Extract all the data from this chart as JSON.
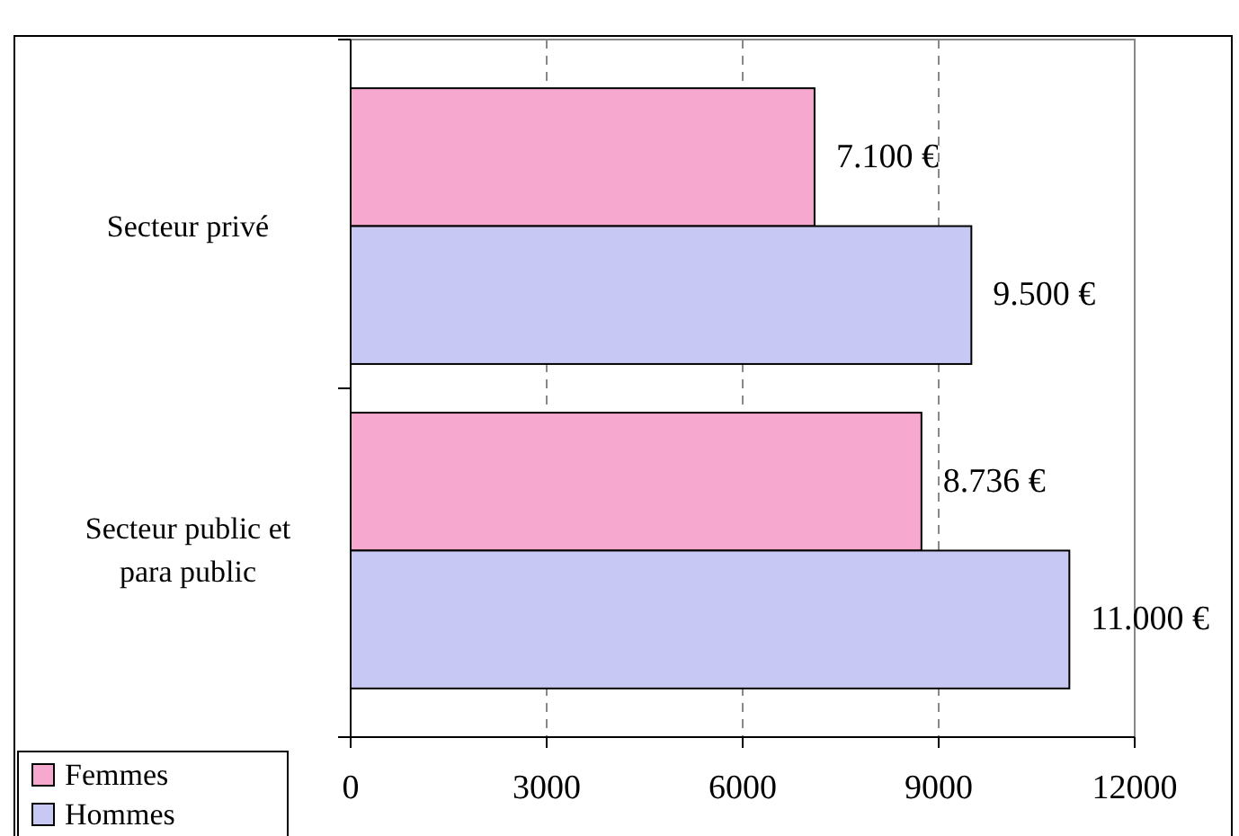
{
  "chart_data": {
    "type": "bar",
    "orientation": "horizontal",
    "categories": [
      "Secteur privé",
      "Secteur public et para public"
    ],
    "series": [
      {
        "name": "Femmes",
        "color": "#f7a8cf",
        "values": [
          7100,
          8736
        ],
        "value_labels": [
          "7.100 €",
          "8.736 €"
        ]
      },
      {
        "name": "Hommes",
        "color": "#c8c8f4",
        "values": [
          9500,
          11000
        ],
        "value_labels": [
          "9.500 €",
          "11.000 €"
        ]
      }
    ],
    "xlim": [
      0,
      12000
    ],
    "xticks": [
      0,
      3000,
      6000,
      9000,
      12000
    ],
    "grid": "x",
    "legend": "bottom left"
  }
}
